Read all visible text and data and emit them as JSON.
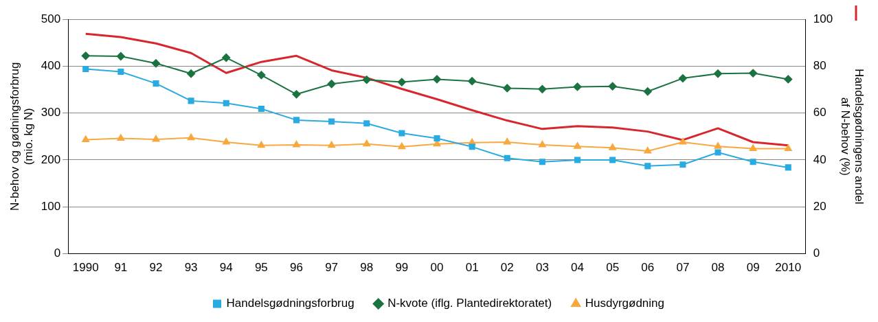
{
  "chart_data": {
    "type": "line",
    "categories": [
      "1990",
      "91",
      "92",
      "93",
      "94",
      "95",
      "96",
      "97",
      "98",
      "99",
      "00",
      "01",
      "02",
      "03",
      "04",
      "05",
      "06",
      "07",
      "08",
      "09",
      "2010"
    ],
    "series": [
      {
        "name": "Handelsgødningsforbrug",
        "color": "#29abe2",
        "marker": "square",
        "values": [
          394,
          388,
          363,
          326,
          321,
          309,
          285,
          282,
          278,
          257,
          246,
          228,
          204,
          196,
          200,
          200,
          187,
          190,
          216,
          196,
          184
        ]
      },
      {
        "name": "N-kvote (iflg. Plantedirektoratet)",
        "color": "#1a7340",
        "marker": "diamond",
        "values": [
          422,
          421,
          406,
          384,
          418,
          381,
          340,
          362,
          371,
          366,
          372,
          368,
          353,
          351,
          356,
          357,
          346,
          374,
          384,
          385,
          372
        ]
      },
      {
        "name": "Husdyrgødning",
        "color": "#f7a83e",
        "marker": "triangle",
        "values": [
          243,
          246,
          244,
          247,
          238,
          231,
          232,
          231,
          234,
          228,
          234,
          237,
          238,
          232,
          229,
          226,
          219,
          238,
          229,
          224,
          224
        ]
      },
      {
        "color": "#d7262e",
        "axis": "y2",
        "marker": "none",
        "values": [
          93.8,
          92.4,
          89.7,
          85.6,
          77.1,
          81.8,
          84.4,
          78.2,
          75.0,
          70.3,
          65.9,
          61.2,
          56.8,
          53.2,
          54.4,
          53.8,
          52.1,
          48.5,
          53.5,
          47.6,
          46.2
        ]
      }
    ],
    "ylabel": "N-behov og gødningsforbrug\n(mio. kg N)",
    "y2label": "Handelsgødningens andel\naf N-behov (%)",
    "ylim": [
      0,
      500
    ],
    "yticks": [
      0,
      100,
      200,
      300,
      400,
      500
    ],
    "y2lim": [
      0,
      100
    ],
    "y2ticks": [
      0,
      20,
      40,
      60,
      80,
      100
    ],
    "grid": "y",
    "legend": "bottom",
    "line_style": "solid"
  }
}
